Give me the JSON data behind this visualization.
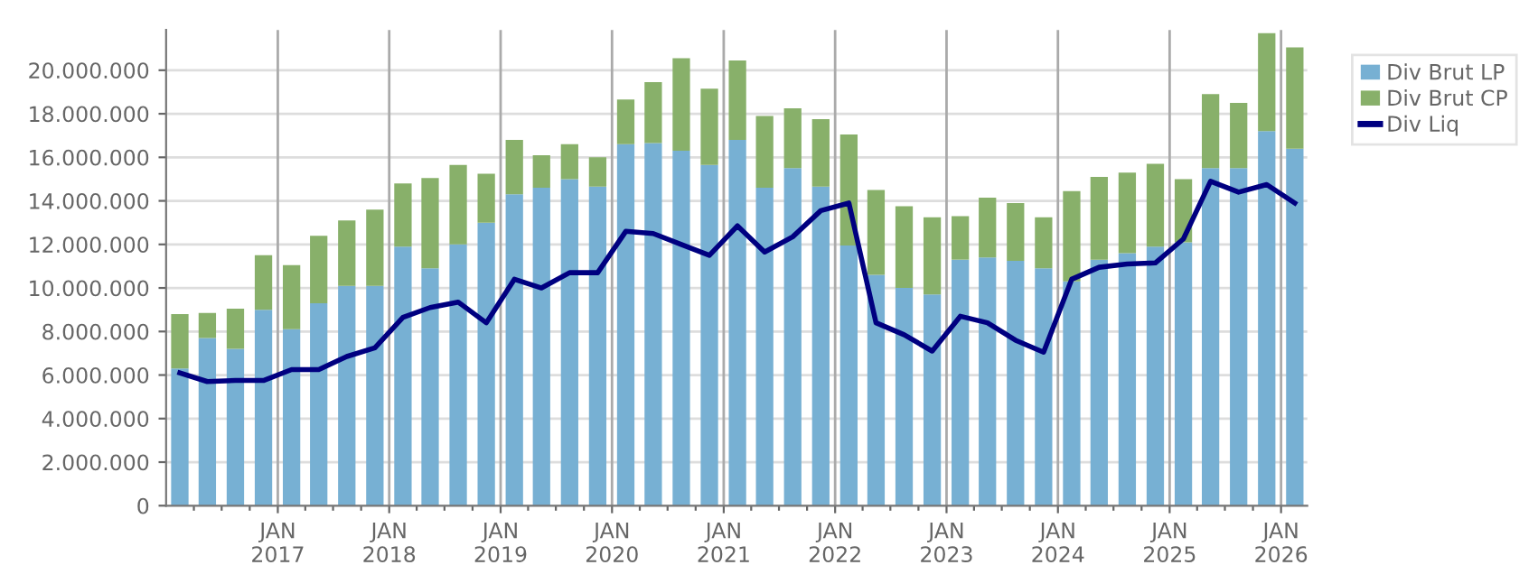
{
  "chart_data": {
    "type": "bar",
    "stacked": true,
    "x": [
      "2016-02-15",
      "2016-05-15",
      "2016-08-15",
      "2016-11-15",
      "2017-02-15",
      "2017-05-15",
      "2017-08-15",
      "2017-11-15",
      "2018-02-15",
      "2018-05-15",
      "2018-08-15",
      "2018-11-15",
      "2019-02-15",
      "2019-05-15",
      "2019-08-15",
      "2019-11-15",
      "2020-02-15",
      "2020-05-15",
      "2020-08-15",
      "2020-11-15",
      "2021-02-15",
      "2021-05-15",
      "2021-08-15",
      "2021-11-15",
      "2022-02-15",
      "2022-05-15",
      "2022-08-15",
      "2022-11-15",
      "2023-02-15",
      "2023-05-15",
      "2023-08-15",
      "2023-11-15",
      "2024-02-15",
      "2024-05-15",
      "2024-08-15",
      "2024-11-15",
      "2025-02-15",
      "2025-05-15",
      "2025-08-15",
      "2025-11-15",
      "2026-02-15"
    ],
    "series": [
      {
        "name": "Div Brut LP",
        "color": "#77b0d3",
        "values": [
          6300000,
          7700000,
          7200000,
          9000000,
          8100000,
          9300000,
          10100000,
          10100000,
          11900000,
          10900000,
          12000000,
          13000000,
          14300000,
          14600000,
          15000000,
          14650000,
          16600000,
          16650000,
          16300000,
          15650000,
          16800000,
          14600000,
          15500000,
          14650000,
          11950000,
          10600000,
          10000000,
          9700000,
          11300000,
          11400000,
          11250000,
          10900000,
          10300000,
          11300000,
          11600000,
          11900000,
          12100000,
          15500000,
          15500000,
          17200000,
          16400000
        ]
      },
      {
        "name": "Div Brut CP",
        "color": "#88b06a",
        "values": [
          2500000,
          1150000,
          1850000,
          2500000,
          2950000,
          3100000,
          3000000,
          3500000,
          2900000,
          4150000,
          3650000,
          2250000,
          2500000,
          1500000,
          1600000,
          1350000,
          2050000,
          2800000,
          4250000,
          3500000,
          3650000,
          3300000,
          2750000,
          3100000,
          5100000,
          3900000,
          3750000,
          3550000,
          2000000,
          2750000,
          2650000,
          2350000,
          4150000,
          3800000,
          3700000,
          3800000,
          2900000,
          3400000,
          3000000,
          4500000,
          4650000
        ]
      },
      {
        "name": "Div Liq",
        "type": "line",
        "color": "#000080",
        "values": [
          6100000,
          5700000,
          5750000,
          5750000,
          6250000,
          6250000,
          6850000,
          7250000,
          8650000,
          9100000,
          9350000,
          8400000,
          10400000,
          10000000,
          10700000,
          10700000,
          12600000,
          12500000,
          12000000,
          11500000,
          12850000,
          11650000,
          12350000,
          13550000,
          13900000,
          8400000,
          7850000,
          7100000,
          8700000,
          8400000,
          7600000,
          7050000,
          10400000,
          10950000,
          11100000,
          11150000,
          12250000,
          14900000,
          14400000,
          14750000,
          13900000
        ]
      }
    ],
    "ylim": [
      0,
      21850000
    ],
    "yticks": [
      {
        "value": 0,
        "label": "0"
      },
      {
        "value": 2000000,
        "label": "2.000.000"
      },
      {
        "value": 4000000,
        "label": "4.000.000"
      },
      {
        "value": 6000000,
        "label": "6.000.000"
      },
      {
        "value": 8000000,
        "label": "8.000.000"
      },
      {
        "value": 10000000,
        "label": "10.000.000"
      },
      {
        "value": 12000000,
        "label": "12.000.000"
      },
      {
        "value": 14000000,
        "label": "14.000.000"
      },
      {
        "value": 16000000,
        "label": "16.000.000"
      },
      {
        "value": 18000000,
        "label": "18.000.000"
      },
      {
        "value": 20000000,
        "label": "20.000.000"
      }
    ],
    "xlim": [
      "2016-01-01",
      "2026-03-28"
    ],
    "xticks": [
      {
        "value": "2016-04-01",
        "label": null
      },
      {
        "value": "2016-07-01",
        "label": null
      },
      {
        "value": "2016-10-01",
        "label": null
      },
      {
        "value": "2017-01-01",
        "label": "JAN\n2017"
      },
      {
        "value": "2017-04-01",
        "label": null
      },
      {
        "value": "2017-07-01",
        "label": null
      },
      {
        "value": "2017-10-01",
        "label": null
      },
      {
        "value": "2018-01-01",
        "label": "JAN\n2018"
      },
      {
        "value": "2018-04-01",
        "label": null
      },
      {
        "value": "2018-07-01",
        "label": null
      },
      {
        "value": "2018-10-01",
        "label": null
      },
      {
        "value": "2019-01-01",
        "label": "JAN\n2019"
      },
      {
        "value": "2019-04-01",
        "label": null
      },
      {
        "value": "2019-07-01",
        "label": null
      },
      {
        "value": "2019-10-01",
        "label": null
      },
      {
        "value": "2020-01-01",
        "label": "JAN\n2020"
      },
      {
        "value": "2020-04-01",
        "label": null
      },
      {
        "value": "2020-07-01",
        "label": null
      },
      {
        "value": "2020-10-01",
        "label": null
      },
      {
        "value": "2021-01-01",
        "label": "JAN\n2021"
      },
      {
        "value": "2021-04-01",
        "label": null
      },
      {
        "value": "2021-07-01",
        "label": null
      },
      {
        "value": "2021-10-01",
        "label": null
      },
      {
        "value": "2022-01-01",
        "label": "JAN\n2022"
      },
      {
        "value": "2022-04-01",
        "label": null
      },
      {
        "value": "2022-07-01",
        "label": null
      },
      {
        "value": "2022-10-01",
        "label": null
      },
      {
        "value": "2023-01-01",
        "label": "JAN\n2023"
      },
      {
        "value": "2023-04-01",
        "label": null
      },
      {
        "value": "2023-07-01",
        "label": null
      },
      {
        "value": "2023-10-01",
        "label": null
      },
      {
        "value": "2024-01-01",
        "label": "JAN\n2024"
      },
      {
        "value": "2024-04-01",
        "label": null
      },
      {
        "value": "2024-07-01",
        "label": null
      },
      {
        "value": "2024-10-01",
        "label": null
      },
      {
        "value": "2025-01-01",
        "label": "JAN\n2025"
      },
      {
        "value": "2025-04-01",
        "label": null
      },
      {
        "value": "2025-07-01",
        "label": null
      },
      {
        "value": "2025-10-01",
        "label": null
      },
      {
        "value": "2026-01-01",
        "label": "JAN\n2026"
      }
    ],
    "grid": true,
    "legend": "top right",
    "line_style": "solid",
    "marker": "none"
  }
}
